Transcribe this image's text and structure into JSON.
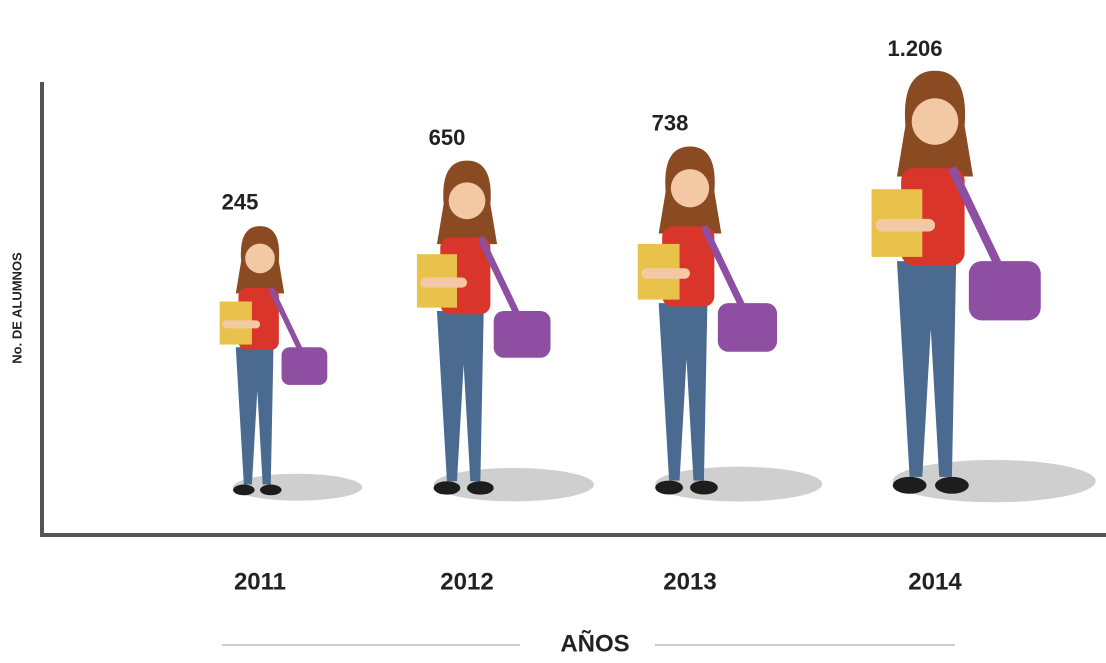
{
  "chart_data": {
    "type": "pictograph",
    "categories": [
      "2011",
      "2012",
      "2013",
      "2014"
    ],
    "values": [
      245,
      650,
      738,
      1206
    ],
    "value_labels": [
      "245",
      "650",
      "738",
      "1.206"
    ],
    "x_label": "AÑOS",
    "y_label": "No. DE ALUMNOS"
  }
}
